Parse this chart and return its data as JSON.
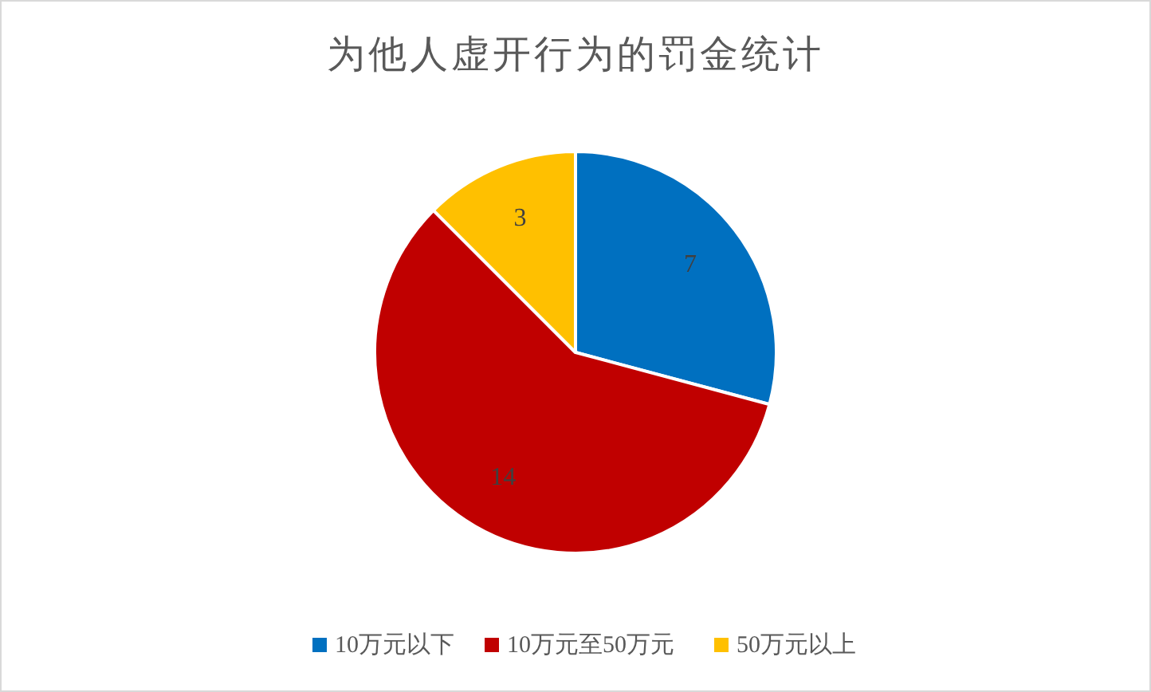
{
  "chart_data": {
    "type": "pie",
    "title": "为他人虚开行为的罚金统计",
    "categories": [
      "10万元以下",
      "10万元至50万元",
      "50万元以上"
    ],
    "values": [
      7,
      14,
      3
    ],
    "colors": [
      "#0070c0",
      "#c00000",
      "#ffc000"
    ],
    "data_labels": true,
    "legend": "bottom"
  }
}
